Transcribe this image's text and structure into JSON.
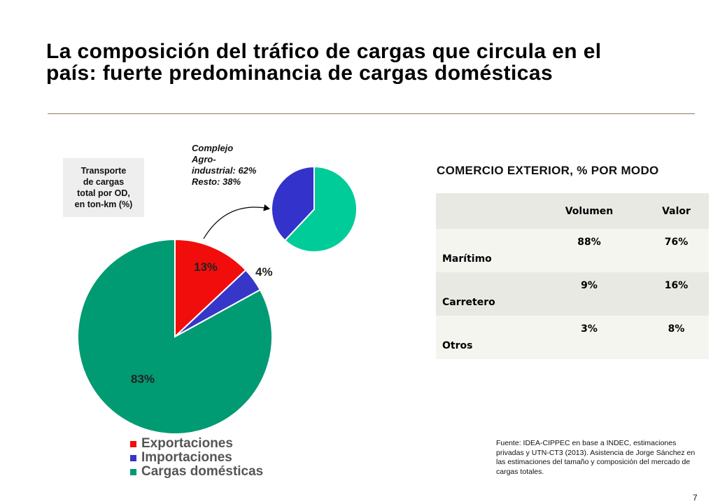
{
  "title": {
    "line1": "La composición del tráfico de cargas que circula en el",
    "line2": "país: fuerte predominancia de cargas domésticas"
  },
  "od_box": {
    "lines": [
      "Transporte",
      "de cargas",
      "total por OD,",
      "en ton-km (%)"
    ]
  },
  "note": {
    "lines": [
      "Complejo",
      "Agro-",
      "industrial: 62%",
      "Resto: 38%"
    ]
  },
  "chart_data": [
    {
      "type": "pie",
      "title": "Transporte de cargas total por OD, en ton-km (%)",
      "labels": [
        "Exportaciones",
        "Importaciones",
        "Cargas domésticas"
      ],
      "values": [
        13,
        4,
        83
      ],
      "data_labels": [
        "13%",
        "4%",
        "83%"
      ],
      "colors": [
        "#f20d0d",
        "#3636c8",
        "#009a73"
      ],
      "legend_position": "bottom"
    },
    {
      "type": "pie",
      "labels": [
        "Complejo Agro-industrial",
        "Resto"
      ],
      "values": [
        62,
        38
      ],
      "colors": [
        "#00cc99",
        "#3333cc"
      ]
    }
  ],
  "legend": [
    {
      "label": "Exportaciones",
      "color": "#f20d0d"
    },
    {
      "label": "Importaciones",
      "color": "#3636c8"
    },
    {
      "label": "Cargas domésticas",
      "color": "#009a73"
    }
  ],
  "table": {
    "title": "COMERCIO EXTERIOR, % POR MODO",
    "headers": [
      "",
      "Volumen",
      "Valor"
    ],
    "rows": [
      {
        "mode": "Marítimo",
        "volumen": "88%",
        "valor": "76%"
      },
      {
        "mode": "Carretero",
        "volumen": "9%",
        "valor": "16%"
      },
      {
        "mode": "Otros",
        "volumen": "3%",
        "valor": "8%"
      }
    ]
  },
  "source": "Fuente: IDEA-CIPPEC en base a INDEC, estimaciones privadas y UTN-CT3 (2013). Asistencia de Jorge Sánchez en las estimaciones del tamaño y composición del mercado de cargas totales.",
  "page_number": "7"
}
